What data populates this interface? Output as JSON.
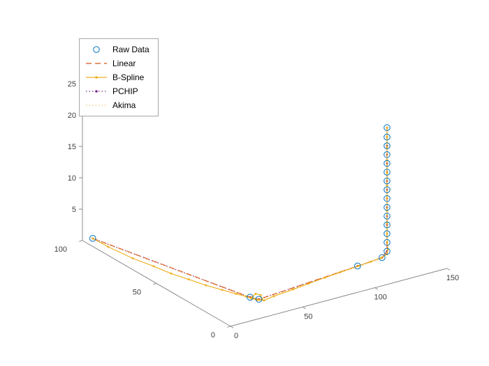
{
  "chart_data": {
    "type": "line",
    "subtype": "line3d-interpolation-comparison",
    "title": "",
    "legend_position": "northwest",
    "axes": {
      "xlim": [
        0,
        150
      ],
      "ylim": [
        0,
        100
      ],
      "zlim": [
        0,
        25
      ],
      "xticks": [
        0,
        50,
        100,
        150
      ],
      "yticks": [
        0,
        50,
        100
      ],
      "zticks": [
        5,
        10,
        15,
        20,
        25
      ],
      "grid": false,
      "axis_color": "#8C8C8C",
      "tick_label_color": "#404040"
    },
    "raw_points": [
      [
        2,
        95,
        0.9
      ],
      [
        32,
        18,
        0.2
      ],
      [
        35,
        15,
        0.1
      ],
      [
        108,
        19.5,
        0.3
      ],
      [
        127,
        21.5,
        0.2
      ],
      [
        133,
        24,
        0.5
      ],
      [
        133,
        24,
        1.9
      ],
      [
        133,
        24,
        3.3
      ],
      [
        133,
        24,
        4.7
      ],
      [
        133,
        24,
        6.1
      ],
      [
        133,
        24,
        7.5
      ],
      [
        133,
        24,
        8.9
      ],
      [
        133,
        24,
        10.3
      ],
      [
        133,
        24,
        11.7
      ],
      [
        133,
        24,
        13.1
      ],
      [
        133,
        24,
        14.5
      ],
      [
        133,
        24,
        15.9
      ],
      [
        133,
        24,
        17.3
      ],
      [
        133,
        24,
        18.7
      ],
      [
        133,
        24,
        20.2
      ]
    ],
    "series": [
      {
        "name": "Raw Data",
        "type": "scatter",
        "color": "#0072BD",
        "marker": "circle",
        "points_ref": "raw"
      },
      {
        "name": "Linear",
        "type": "line",
        "color": "#D95319",
        "dash": "dashed",
        "points_ref": "raw"
      },
      {
        "name": "B-Spline",
        "type": "line",
        "color": "#EDB120",
        "dash": "solid",
        "marker": "dot",
        "points": [
          [
            2,
            95,
            0.9
          ],
          [
            5.5,
            88,
            0.3
          ],
          [
            9.3,
            75.1,
            0
          ],
          [
            12.7,
            64.3,
            0
          ],
          [
            15,
            54.7,
            0
          ],
          [
            18.5,
            46.4,
            0
          ],
          [
            21.9,
            37.9,
            0
          ],
          [
            25.8,
            30.8,
            0
          ],
          [
            29.2,
            24.7,
            0
          ],
          [
            31.7,
            20.5,
            0
          ],
          [
            32.7,
            17.8,
            0
          ],
          [
            34.3,
            15.5,
            0
          ],
          [
            37.2,
            15,
            0
          ],
          [
            39.3,
            18,
            0.1
          ],
          [
            37.5,
            19.6,
            0.2
          ],
          [
            33.6,
            18.1,
            0.1
          ],
          [
            33.8,
            15.3,
            0
          ],
          [
            37.1,
            13.5,
            0
          ],
          [
            45,
            14.5,
            0.05
          ],
          [
            59.5,
            15.6,
            0.1
          ],
          [
            71,
            16.6,
            0.15
          ],
          [
            83.5,
            17.7,
            0.2
          ],
          [
            95,
            18.5,
            0.25
          ],
          [
            108.4,
            19.4,
            0.3
          ],
          [
            118,
            20.4,
            0.25
          ],
          [
            126.7,
            21.6,
            0.2
          ],
          [
            131.6,
            22.6,
            0.3
          ],
          [
            133.4,
            23.8,
            0.8
          ],
          [
            133.2,
            24,
            1.9
          ],
          [
            133,
            24,
            3.3
          ],
          [
            133,
            24,
            5
          ],
          [
            133,
            24,
            7
          ],
          [
            133,
            24,
            9
          ],
          [
            133,
            24,
            11
          ],
          [
            133,
            24,
            13
          ],
          [
            133,
            24,
            15
          ],
          [
            133,
            24,
            17
          ],
          [
            133,
            24,
            18.7
          ],
          [
            133,
            24,
            20.2
          ]
        ]
      },
      {
        "name": "PCHIP",
        "type": "line",
        "color": "#7E2F8E",
        "dash": "dotted",
        "marker": "dot",
        "points_ref": "raw"
      },
      {
        "name": "Akima",
        "type": "line",
        "color": "#EFC57E",
        "dash": "dotted",
        "points_ref": "raw"
      }
    ]
  }
}
